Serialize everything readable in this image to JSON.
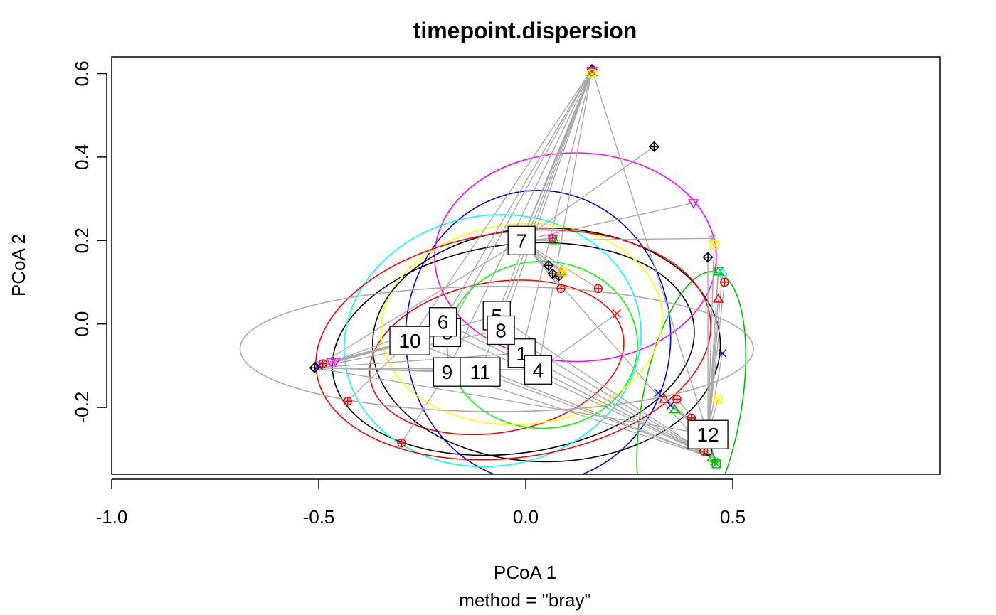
{
  "chart_data": {
    "type": "scatter",
    "title": "timepoint.dispersion",
    "xlabel": "PCoA 1",
    "subtitle": "method = \"bray\"",
    "ylabel": "PCoA 2",
    "xlim": [
      -1.0,
      1.0
    ],
    "ylim": [
      -0.36,
      0.64
    ],
    "x_ticks": [
      -1.0,
      -0.5,
      0.0,
      0.5
    ],
    "x_tick_labels": [
      "-1.0",
      "-0.5",
      "0.0",
      "0.5"
    ],
    "y_ticks": [
      -0.2,
      0.0,
      0.2,
      0.4,
      0.6
    ],
    "y_tick_labels": [
      "-0.2",
      "0.0",
      "0.2",
      "0.4",
      "0.6"
    ],
    "spider_color": "#aaaaaa",
    "centroids": [
      {
        "label": "1",
        "x": -0.01,
        "y": -0.07
      },
      {
        "label": "3",
        "x": -0.19,
        "y": -0.02
      },
      {
        "label": "4",
        "x": 0.03,
        "y": -0.11
      },
      {
        "label": "5",
        "x": -0.07,
        "y": 0.02
      },
      {
        "label": "6",
        "x": -0.2,
        "y": 0.005
      },
      {
        "label": "7",
        "x": -0.01,
        "y": 0.2
      },
      {
        "label": "8",
        "x": -0.06,
        "y": -0.015
      },
      {
        "label": "9",
        "x": -0.19,
        "y": -0.115
      },
      {
        "label": "10",
        "x": -0.28,
        "y": -0.04
      },
      {
        "label": "11",
        "x": -0.11,
        "y": -0.115
      },
      {
        "label": "12",
        "x": 0.44,
        "y": -0.265
      }
    ],
    "ellipses": [
      {
        "group": "1",
        "color": "#000000",
        "cx": -0.03,
        "cy": -0.06,
        "rx": 0.44,
        "ry": 0.25,
        "angle_deg": -8
      },
      {
        "group": "3",
        "color": "#ff0000",
        "cx": -0.07,
        "cy": -0.08,
        "rx": 0.31,
        "ry": 0.18,
        "angle_deg": -10
      },
      {
        "group": "4",
        "color": "#0000ff",
        "cx": 0.03,
        "cy": -0.03,
        "rx": 0.32,
        "ry": 0.35,
        "angle_deg": 0
      },
      {
        "group": "5",
        "color": "#00ff00",
        "cx": 0.04,
        "cy": -0.05,
        "rx": 0.23,
        "ry": 0.2,
        "angle_deg": 0
      },
      {
        "group": "6",
        "color": "#00c000",
        "cx": 0.4,
        "cy": -0.2,
        "rx": 0.12,
        "ry": 0.33,
        "angle_deg": 10
      },
      {
        "group": "7",
        "color": "#ff00ff",
        "cx": 0.12,
        "cy": 0.16,
        "rx": 0.34,
        "ry": 0.25,
        "angle_deg": 0
      },
      {
        "group": "8",
        "color": "#00ffff",
        "cx": -0.08,
        "cy": -0.04,
        "rx": 0.36,
        "ry": 0.3,
        "angle_deg": -10
      },
      {
        "group": "9",
        "color": "#ffff00",
        "cx": -0.01,
        "cy": 0.0,
        "rx": 0.34,
        "ry": 0.24,
        "angle_deg": -5
      },
      {
        "group": "10",
        "color": "#000000",
        "cx": 0.05,
        "cy": -0.05,
        "rx": 0.42,
        "ry": 0.28,
        "angle_deg": 0
      },
      {
        "group": "11",
        "color": "#ff0000",
        "cx": -0.03,
        "cy": -0.05,
        "rx": 0.48,
        "ry": 0.27,
        "angle_deg": -8
      },
      {
        "group": "12",
        "color": "#aaaaaa",
        "cx": -0.07,
        "cy": -0.06,
        "rx": 0.62,
        "ry": 0.15,
        "angle_deg": 0
      }
    ],
    "points": [
      {
        "x": 0.16,
        "y": 0.61,
        "sym": "diamond-plus",
        "color": "#000000"
      },
      {
        "x": 0.16,
        "y": 0.605,
        "sym": "circle-plus",
        "color": "#ff0000"
      },
      {
        "x": 0.16,
        "y": 0.607,
        "sym": "triangle-down",
        "color": "#ff00ff"
      },
      {
        "x": 0.16,
        "y": 0.603,
        "sym": "triangle",
        "color": "#00c000"
      },
      {
        "x": 0.16,
        "y": 0.6,
        "sym": "square-x",
        "color": "#ffff00"
      },
      {
        "x": 0.31,
        "y": 0.425,
        "sym": "diamond-plus",
        "color": "#000000"
      },
      {
        "x": 0.405,
        "y": 0.29,
        "sym": "triangle-down",
        "color": "#ff00ff"
      },
      {
        "x": 0.45,
        "y": 0.205,
        "sym": "asterisk",
        "color": "#aaaaaa"
      },
      {
        "x": 0.455,
        "y": 0.19,
        "sym": "square-x",
        "color": "#ffff00"
      },
      {
        "x": 0.44,
        "y": 0.16,
        "sym": "diamond-plus",
        "color": "#000000"
      },
      {
        "x": 0.465,
        "y": 0.128,
        "sym": "triangle-down",
        "color": "#00c000"
      },
      {
        "x": 0.465,
        "y": 0.125,
        "sym": "triangle",
        "color": "#00c000"
      },
      {
        "x": 0.475,
        "y": 0.12,
        "sym": "diamond",
        "color": "#00ffff"
      },
      {
        "x": 0.48,
        "y": 0.1,
        "sym": "circle-plus",
        "color": "#ff0000"
      },
      {
        "x": 0.465,
        "y": 0.06,
        "sym": "triangle",
        "color": "#ff0000"
      },
      {
        "x": 0.475,
        "y": -0.07,
        "sym": "x",
        "color": "#0000ff"
      },
      {
        "x": 0.465,
        "y": -0.18,
        "sym": "square-x",
        "color": "#ffff00"
      },
      {
        "x": 0.065,
        "y": 0.205,
        "sym": "circle-plus",
        "color": "#ff0000"
      },
      {
        "x": 0.065,
        "y": 0.205,
        "sym": "triangle-down",
        "color": "#ff00ff"
      },
      {
        "x": 0.07,
        "y": 0.2,
        "sym": "triangle",
        "color": "#00c000"
      },
      {
        "x": 0.055,
        "y": 0.14,
        "sym": "diamond-plus",
        "color": "#000000"
      },
      {
        "x": 0.065,
        "y": 0.12,
        "sym": "diamond-plus",
        "color": "#000000"
      },
      {
        "x": 0.08,
        "y": 0.115,
        "sym": "diamond-plus",
        "color": "#000000"
      },
      {
        "x": 0.09,
        "y": 0.125,
        "sym": "square-x",
        "color": "#ffff00"
      },
      {
        "x": 0.085,
        "y": 0.125,
        "sym": "triangle",
        "color": "#ff8c00"
      },
      {
        "x": 0.085,
        "y": 0.085,
        "sym": "circle-plus",
        "color": "#ff0000"
      },
      {
        "x": 0.175,
        "y": 0.085,
        "sym": "circle-plus",
        "color": "#ff0000"
      },
      {
        "x": 0.22,
        "y": 0.025,
        "sym": "x",
        "color": "#ff0000"
      },
      {
        "x": -0.5,
        "y": -0.1,
        "sym": "circle",
        "color": "#aaaaaa"
      },
      {
        "x": -0.51,
        "y": -0.105,
        "sym": "diamond-plus",
        "color": "#000000"
      },
      {
        "x": -0.5,
        "y": -0.1,
        "sym": "x",
        "color": "#0000ff"
      },
      {
        "x": -0.49,
        "y": -0.095,
        "sym": "circle-plus",
        "color": "#ff0000"
      },
      {
        "x": -0.47,
        "y": -0.09,
        "sym": "triangle-down",
        "color": "#ff00ff"
      },
      {
        "x": -0.46,
        "y": -0.09,
        "sym": "triangle-down",
        "color": "#ff00ff"
      },
      {
        "x": -0.43,
        "y": -0.185,
        "sym": "circle-plus",
        "color": "#ff0000"
      },
      {
        "x": -0.3,
        "y": -0.285,
        "sym": "circle-plus",
        "color": "#ff0000"
      },
      {
        "x": 0.32,
        "y": -0.165,
        "sym": "x",
        "color": "#0000ff"
      },
      {
        "x": 0.335,
        "y": -0.18,
        "sym": "triangle",
        "color": "#ff0000"
      },
      {
        "x": 0.35,
        "y": -0.195,
        "sym": "x",
        "color": "#0000ff"
      },
      {
        "x": 0.365,
        "y": -0.18,
        "sym": "circle-plus",
        "color": "#ff0000"
      },
      {
        "x": 0.36,
        "y": -0.205,
        "sym": "triangle",
        "color": "#ff8c00"
      },
      {
        "x": 0.36,
        "y": -0.205,
        "sym": "triangle",
        "color": "#00c000"
      },
      {
        "x": 0.4,
        "y": -0.225,
        "sym": "circle-plus",
        "color": "#ff0000"
      },
      {
        "x": 0.43,
        "y": -0.305,
        "sym": "circle-plus",
        "color": "#ff0000"
      },
      {
        "x": 0.44,
        "y": -0.305,
        "sym": "circle",
        "color": "#000000"
      },
      {
        "x": 0.45,
        "y": -0.32,
        "sym": "triangle",
        "color": "#00c000"
      },
      {
        "x": 0.455,
        "y": -0.33,
        "sym": "asterisk",
        "color": "#00c000"
      },
      {
        "x": 0.46,
        "y": -0.335,
        "sym": "square-x",
        "color": "#00c000"
      }
    ]
  }
}
